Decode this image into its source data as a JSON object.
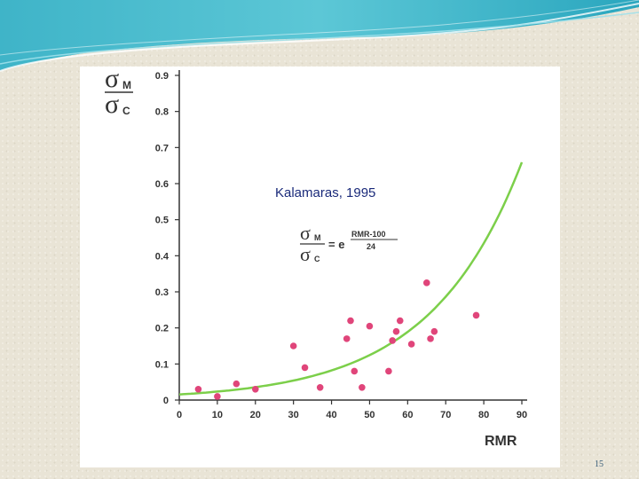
{
  "slide": {
    "page_number": "15"
  },
  "chart_data": {
    "type": "scatter",
    "title": "",
    "xlabel": "RMR",
    "ylabel_symbol": {
      "top": "σ",
      "top_sub": "M",
      "bottom": "σ",
      "bottom_sub": "C"
    },
    "xlim": [
      0,
      90
    ],
    "ylim": [
      0,
      0.9
    ],
    "xticks": [
      "0",
      "10",
      "20",
      "30",
      "40",
      "50",
      "60",
      "70",
      "80",
      "90"
    ],
    "yticks": [
      "0",
      "0.1",
      "0.2",
      "0.3",
      "0.4",
      "0.5",
      "0.6",
      "0.7",
      "0.8",
      "0.9"
    ],
    "grid": false,
    "annotations": {
      "citation": "Kalamaras, 1995",
      "formula": {
        "num_sym": "σ",
        "num_sub": "M",
        "den_sym": "σ",
        "den_sub": "C",
        "eq": "= e",
        "exp_num": "RMR-100",
        "exp_den": "24"
      }
    },
    "colors": {
      "points": "#e0457a",
      "curve": "#7ccf4a",
      "axis": "#333333"
    },
    "points": [
      {
        "x": 5,
        "y": 0.03
      },
      {
        "x": 10,
        "y": 0.01
      },
      {
        "x": 15,
        "y": 0.045
      },
      {
        "x": 20,
        "y": 0.03
      },
      {
        "x": 30,
        "y": 0.15
      },
      {
        "x": 33,
        "y": 0.09
      },
      {
        "x": 37,
        "y": 0.035
      },
      {
        "x": 44,
        "y": 0.17
      },
      {
        "x": 45,
        "y": 0.22
      },
      {
        "x": 46,
        "y": 0.08
      },
      {
        "x": 48,
        "y": 0.035
      },
      {
        "x": 50,
        "y": 0.205
      },
      {
        "x": 55,
        "y": 0.08
      },
      {
        "x": 56,
        "y": 0.165
      },
      {
        "x": 57,
        "y": 0.19
      },
      {
        "x": 58,
        "y": 0.22
      },
      {
        "x": 61,
        "y": 0.155
      },
      {
        "x": 65,
        "y": 0.325
      },
      {
        "x": 66,
        "y": 0.17
      },
      {
        "x": 67,
        "y": 0.19
      },
      {
        "x": 78,
        "y": 0.235
      }
    ],
    "curve": {
      "equation": "exp((RMR-100)/24)",
      "x_range": [
        0,
        90
      ]
    }
  }
}
